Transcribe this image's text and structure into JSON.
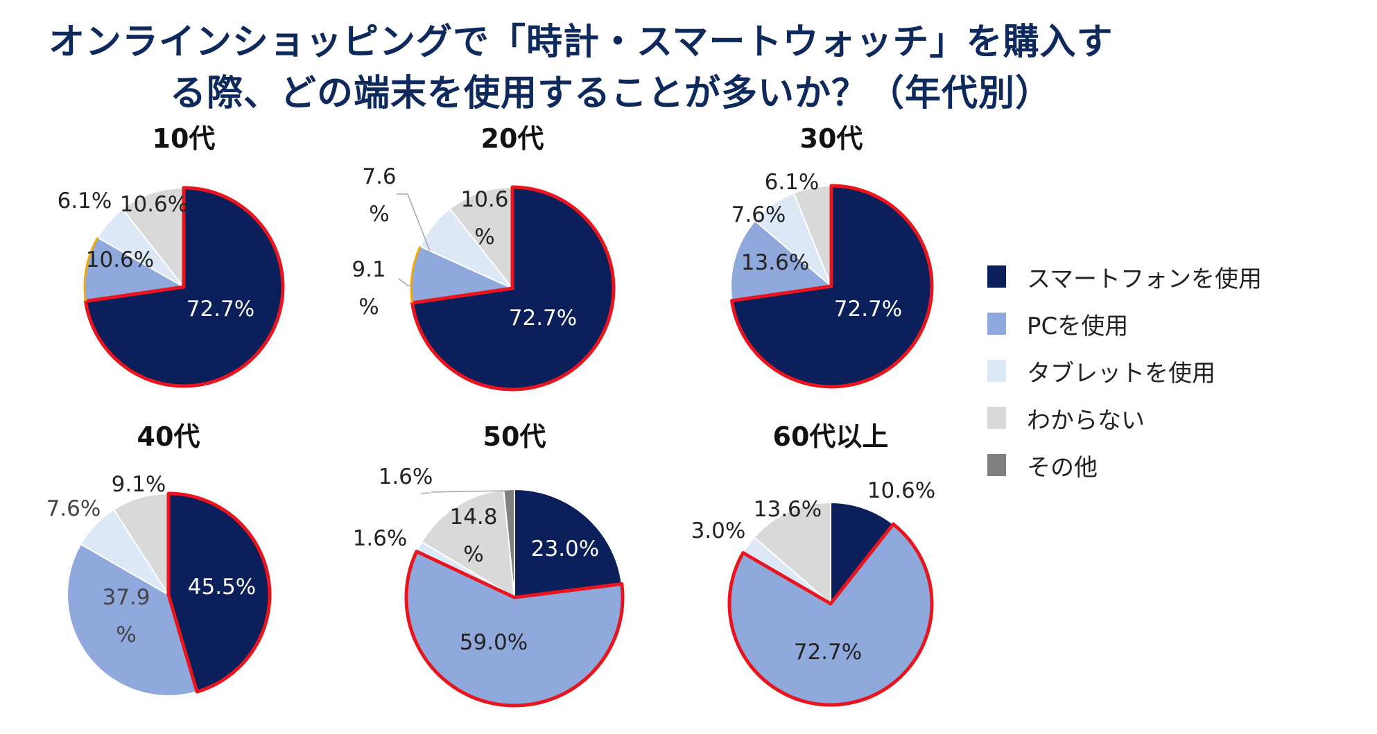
{
  "chart_data": {
    "type": "pie",
    "title_lines": [
      "オンラインショッピングで「時計・スマートウォッチ」を購入す",
      "る際、どの端末を使用することが多いか？（年代別）"
    ],
    "legend": [
      {
        "name": "スマートフォンを使用",
        "color": "#0b1f5b"
      },
      {
        "name": "PCを使用",
        "color": "#8fa9dc"
      },
      {
        "name": "タブレットを使用",
        "color": "#dce8f6"
      },
      {
        "name": "わからない",
        "color": "#d9d9d9"
      },
      {
        "name": "その他",
        "color": "#808080"
      }
    ],
    "pies": [
      {
        "title": "10代",
        "values": [
          72.7,
          10.6,
          6.1,
          10.6,
          0
        ],
        "labels": [
          {
            "line1": "72.7%"
          },
          {
            "line1": "10.6%"
          },
          {
            "line1": "6.1%"
          },
          {
            "line1": "10.6%"
          },
          null
        ]
      },
      {
        "title": "20代",
        "values": [
          72.7,
          9.1,
          7.6,
          10.6,
          0
        ],
        "labels": [
          {
            "line1": "72.7%"
          },
          {
            "line1": "9.1",
            "line2": "%"
          },
          {
            "line1": "7.6",
            "line2": "%"
          },
          {
            "line1": "10.6",
            "line2": "%"
          },
          null
        ]
      },
      {
        "title": "30代",
        "values": [
          72.7,
          13.6,
          7.6,
          6.1,
          0
        ],
        "labels": [
          {
            "line1": "72.7%"
          },
          {
            "line1": "13.6%"
          },
          {
            "line1": "7.6%"
          },
          {
            "line1": "6.1%"
          },
          null
        ]
      },
      {
        "title": "40代",
        "values": [
          45.5,
          37.9,
          7.6,
          9.1,
          0
        ],
        "labels": [
          {
            "line1": "45.5%"
          },
          {
            "line1": "37.9",
            "line2": "%"
          },
          {
            "line1": "7.6%"
          },
          {
            "line1": "9.1%"
          },
          null
        ]
      },
      {
        "title": "50代",
        "values": [
          23.0,
          59.0,
          1.6,
          14.8,
          1.6
        ],
        "labels": [
          {
            "line1": "23.0%"
          },
          {
            "line1": "59.0%"
          },
          {
            "line1": "1.6%"
          },
          {
            "line1": "14.8",
            "line2": "%"
          },
          {
            "line1": "1.6%"
          }
        ]
      },
      {
        "title": "60代以上",
        "values": [
          10.6,
          72.7,
          3.0,
          13.6,
          0
        ],
        "labels": [
          {
            "line1": "10.6%"
          },
          {
            "line1": "72.7%"
          },
          {
            "line1": "3.0%"
          },
          {
            "line1": "13.6%"
          },
          null
        ]
      }
    ]
  }
}
